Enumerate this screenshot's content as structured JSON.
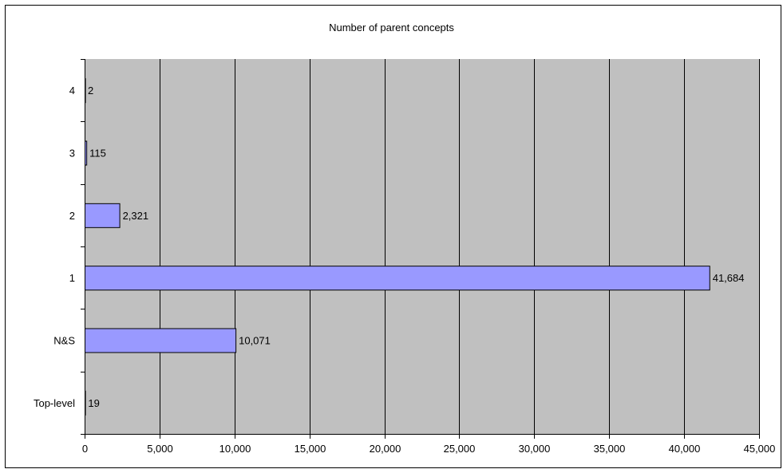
{
  "chart_data": {
    "type": "bar",
    "orientation": "horizontal",
    "title": "Number of parent concepts",
    "xlabel": "",
    "ylabel": "",
    "categories": [
      "Top-level",
      "N&S",
      "1",
      "2",
      "3",
      "4"
    ],
    "values": [
      19,
      10071,
      41684,
      2321,
      115,
      2
    ],
    "data_labels": [
      "19",
      "10,071",
      "41,684",
      "2,321",
      "115",
      "2"
    ],
    "xlim": [
      0,
      45000
    ],
    "x_ticks": [
      0,
      5000,
      10000,
      15000,
      20000,
      25000,
      30000,
      35000,
      40000,
      45000
    ],
    "x_tick_labels": [
      "0",
      "5,000",
      "10,000",
      "15,000",
      "20,000",
      "25,000",
      "30,000",
      "35,000",
      "40,000",
      "45,000"
    ],
    "grid": true,
    "legend": "none",
    "colors": {
      "bar_fill": "#9999ff",
      "bar_stroke": "#000000",
      "plot_background": "#c0c0c0",
      "gridline": "#000000"
    }
  }
}
